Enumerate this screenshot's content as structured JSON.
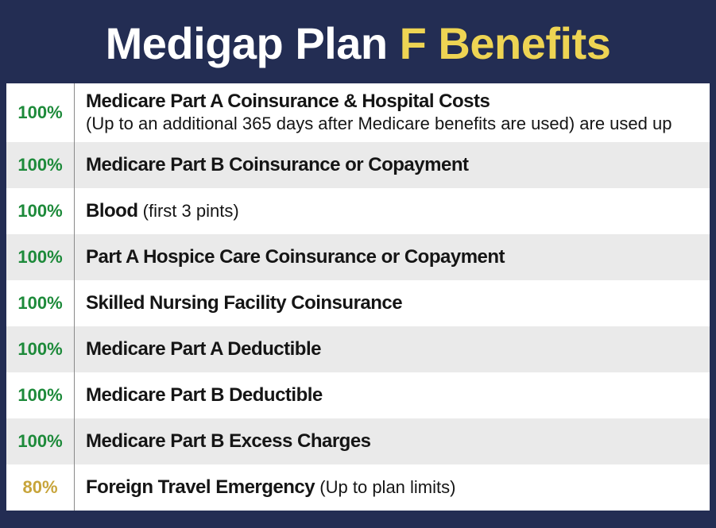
{
  "header": {
    "part1": "Medigap Plan ",
    "part2": "F Benefits"
  },
  "colors": {
    "background": "#232d53",
    "title_main": "#ffffff",
    "title_accent": "#eed453",
    "pct_green": "#1d8a3a",
    "pct_gold": "#c7a43a",
    "row_odd": "#ffffff",
    "row_even": "#eaeaea",
    "divider": "#8a8a8a",
    "text": "#151515"
  },
  "typography": {
    "title_fontsize": 56,
    "pct_fontsize": 22,
    "desc_fontsize": 24,
    "note_fontsize": 22,
    "font_family": "Arial Narrow"
  },
  "layout": {
    "pct_col_width": 86,
    "row_min_height": 58
  },
  "rows": [
    {
      "pct": "100%",
      "pct_style": "green",
      "bold": "Medicare Part A Coinsurance & Hospital Costs",
      "note": "(Up to an additional 365 days after Medicare benefits are used) are used up",
      "note_break": true
    },
    {
      "pct": "100%",
      "pct_style": "green",
      "bold": "Medicare Part B Coinsurance or Copayment",
      "note": ""
    },
    {
      "pct": "100%",
      "pct_style": "green",
      "bold": "Blood ",
      "note": "(first 3 pints)"
    },
    {
      "pct": "100%",
      "pct_style": "green",
      "bold": "Part A Hospice Care Coinsurance or Copayment",
      "note": ""
    },
    {
      "pct": "100%",
      "pct_style": "green",
      "bold": "Skilled Nursing Facility Coinsurance",
      "note": ""
    },
    {
      "pct": "100%",
      "pct_style": "green",
      "bold": "Medicare Part A Deductible",
      "note": ""
    },
    {
      "pct": "100%",
      "pct_style": "green",
      "bold": "Medicare Part B Deductible",
      "note": ""
    },
    {
      "pct": "100%",
      "pct_style": "green",
      "bold": "Medicare Part B Excess Charges",
      "note": ""
    },
    {
      "pct": "80%",
      "pct_style": "gold",
      "bold": "Foreign Travel Emergency ",
      "note": "(Up to plan limits)"
    }
  ]
}
